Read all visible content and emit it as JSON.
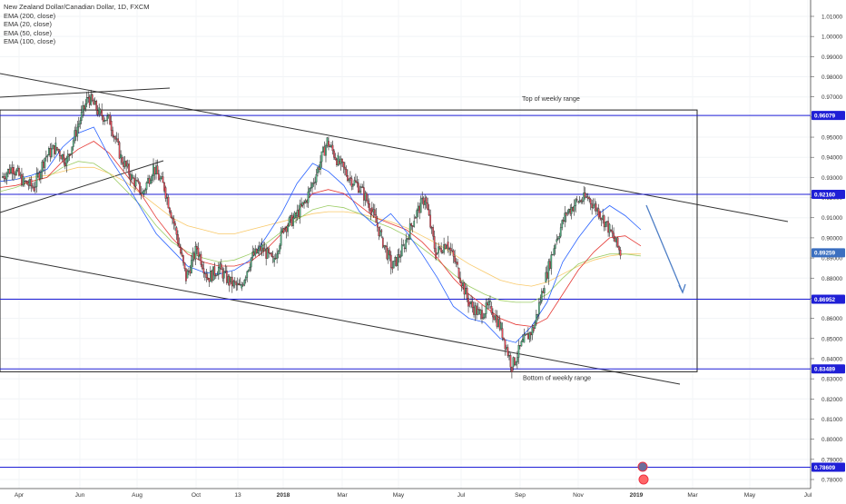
{
  "legend": {
    "title": "New Zealand Dollar/Canadian Dollar, 1D, FXCM",
    "indicators": [
      "EMA (200, close)",
      "EMA (20, close)",
      "EMA (50, close)",
      "EMA (100, close)"
    ]
  },
  "colors": {
    "up": "#53b987",
    "down": "#eb4d5c",
    "wick": "#222222",
    "level": "#1f1fd6",
    "trend": "#333333",
    "arrow": "#4f7fc6",
    "ema20": "#2962ff",
    "ema50": "#e53935",
    "ema100": "#9ccc65",
    "ema200": "#f9c96a",
    "badge_blue": "#1f1fd6",
    "badge_current": "#3b6fc0"
  },
  "chart_data": {
    "type": "candlestick",
    "y_axis_ticks": [
      "1.01000",
      "1.00000",
      "0.99000",
      "0.98000",
      "0.97000",
      "0.96000",
      "0.95000",
      "0.94000",
      "0.93000",
      "0.92000",
      "0.91000",
      "0.90000",
      "0.89000",
      "0.88000",
      "0.87000",
      "0.86000",
      "0.85000",
      "0.84000",
      "0.83000",
      "0.82000",
      "0.81000",
      "0.80000",
      "0.79000",
      "0.78000"
    ],
    "ylim": [
      0.7755,
      1.0145
    ],
    "x_axis_ticks": [
      "Apr",
      "Jun",
      "Aug",
      "Oct",
      "13",
      "2018",
      "Mar",
      "May",
      "Jul",
      "Sep",
      "Nov",
      "2019",
      "Mar",
      "May",
      "Jul"
    ],
    "price_levels": [
      {
        "label": "0.96079",
        "value": 0.96079
      },
      {
        "label": "0.92160",
        "value": 0.9216
      },
      {
        "label": "0.86952",
        "value": 0.86952
      },
      {
        "label": "0.83489",
        "value": 0.83489
      },
      {
        "label": "0.78609",
        "value": 0.78609
      }
    ],
    "current_price": {
      "label": "0.89259",
      "value": 0.89259
    },
    "annotations": [
      "Top of weekly range",
      "Bottom of weekly range"
    ],
    "price_path": [
      [
        0.93,
        0.935
      ],
      [
        0.935,
        0.928
      ],
      [
        0.928,
        0.925
      ],
      [
        0.925,
        0.94
      ],
      [
        0.94,
        0.945
      ],
      [
        0.945,
        0.938
      ],
      [
        0.938,
        0.955
      ],
      [
        0.955,
        0.97
      ],
      [
        0.97,
        0.962
      ],
      [
        0.962,
        0.958
      ],
      [
        0.958,
        0.94
      ],
      [
        0.94,
        0.93
      ],
      [
        0.93,
        0.922
      ],
      [
        0.922,
        0.935
      ],
      [
        0.935,
        0.925
      ],
      [
        0.925,
        0.905
      ],
      [
        0.905,
        0.88
      ],
      [
        0.88,
        0.895
      ],
      [
        0.895,
        0.88
      ],
      [
        0.88,
        0.885
      ],
      [
        0.885,
        0.878
      ],
      [
        0.878,
        0.875
      ],
      [
        0.875,
        0.89
      ],
      [
        0.89,
        0.895
      ],
      [
        0.895,
        0.888
      ],
      [
        0.888,
        0.905
      ],
      [
        0.905,
        0.91
      ],
      [
        0.91,
        0.918
      ],
      [
        0.918,
        0.932
      ],
      [
        0.932,
        0.948
      ],
      [
        0.948,
        0.938
      ],
      [
        0.938,
        0.93
      ],
      [
        0.93,
        0.925
      ],
      [
        0.925,
        0.915
      ],
      [
        0.915,
        0.9
      ],
      [
        0.9,
        0.885
      ],
      [
        0.885,
        0.895
      ],
      [
        0.895,
        0.91
      ],
      [
        0.91,
        0.92
      ],
      [
        0.92,
        0.892
      ],
      [
        0.892,
        0.898
      ],
      [
        0.898,
        0.885
      ],
      [
        0.885,
        0.868
      ],
      [
        0.868,
        0.862
      ],
      [
        0.862,
        0.866
      ],
      [
        0.866,
        0.855
      ],
      [
        0.855,
        0.836
      ],
      [
        0.836,
        0.848
      ],
      [
        0.848,
        0.855
      ],
      [
        0.855,
        0.878
      ],
      [
        0.878,
        0.898
      ],
      [
        0.898,
        0.912
      ],
      [
        0.912,
        0.918
      ],
      [
        0.918,
        0.92
      ],
      [
        0.92,
        0.913
      ],
      [
        0.913,
        0.904
      ],
      [
        0.904,
        0.8926
      ]
    ],
    "ema20": [
      0.928,
      0.929,
      0.931,
      0.934,
      0.945,
      0.952,
      0.955,
      0.94,
      0.928,
      0.915,
      0.902,
      0.894,
      0.886,
      0.883,
      0.882,
      0.884,
      0.889,
      0.9,
      0.912,
      0.927,
      0.937,
      0.933,
      0.926,
      0.913,
      0.906,
      0.912,
      0.903,
      0.892,
      0.88,
      0.866,
      0.86,
      0.858,
      0.85,
      0.848,
      0.856,
      0.868,
      0.888,
      0.9,
      0.91,
      0.916,
      0.911,
      0.904
    ],
    "ema50": [
      0.925,
      0.926,
      0.928,
      0.93,
      0.938,
      0.944,
      0.948,
      0.942,
      0.932,
      0.922,
      0.91,
      0.9,
      0.892,
      0.888,
      0.886,
      0.886,
      0.888,
      0.894,
      0.902,
      0.913,
      0.922,
      0.924,
      0.922,
      0.916,
      0.91,
      0.907,
      0.904,
      0.898,
      0.89,
      0.88,
      0.872,
      0.866,
      0.86,
      0.857,
      0.856,
      0.86,
      0.872,
      0.884,
      0.893,
      0.9,
      0.901,
      0.896
    ],
    "ema100": [
      0.923,
      0.925,
      0.928,
      0.93,
      0.935,
      0.938,
      0.937,
      0.932,
      0.924,
      0.916,
      0.906,
      0.898,
      0.893,
      0.89,
      0.888,
      0.889,
      0.892,
      0.897,
      0.903,
      0.909,
      0.914,
      0.916,
      0.915,
      0.912,
      0.908,
      0.905,
      0.901,
      0.895,
      0.889,
      0.882,
      0.876,
      0.872,
      0.869,
      0.868,
      0.868,
      0.872,
      0.88,
      0.887,
      0.89,
      0.892,
      0.892,
      0.891
    ],
    "ema200": [
      0.928,
      0.929,
      0.93,
      0.931,
      0.933,
      0.935,
      0.935,
      0.932,
      0.928,
      0.922,
      0.916,
      0.91,
      0.906,
      0.904,
      0.902,
      0.902,
      0.904,
      0.906,
      0.908,
      0.91,
      0.912,
      0.913,
      0.913,
      0.912,
      0.91,
      0.908,
      0.905,
      0.901,
      0.897,
      0.892,
      0.887,
      0.883,
      0.879,
      0.877,
      0.876,
      0.878,
      0.882,
      0.886,
      0.889,
      0.891,
      0.892,
      0.892
    ],
    "grid": true
  }
}
